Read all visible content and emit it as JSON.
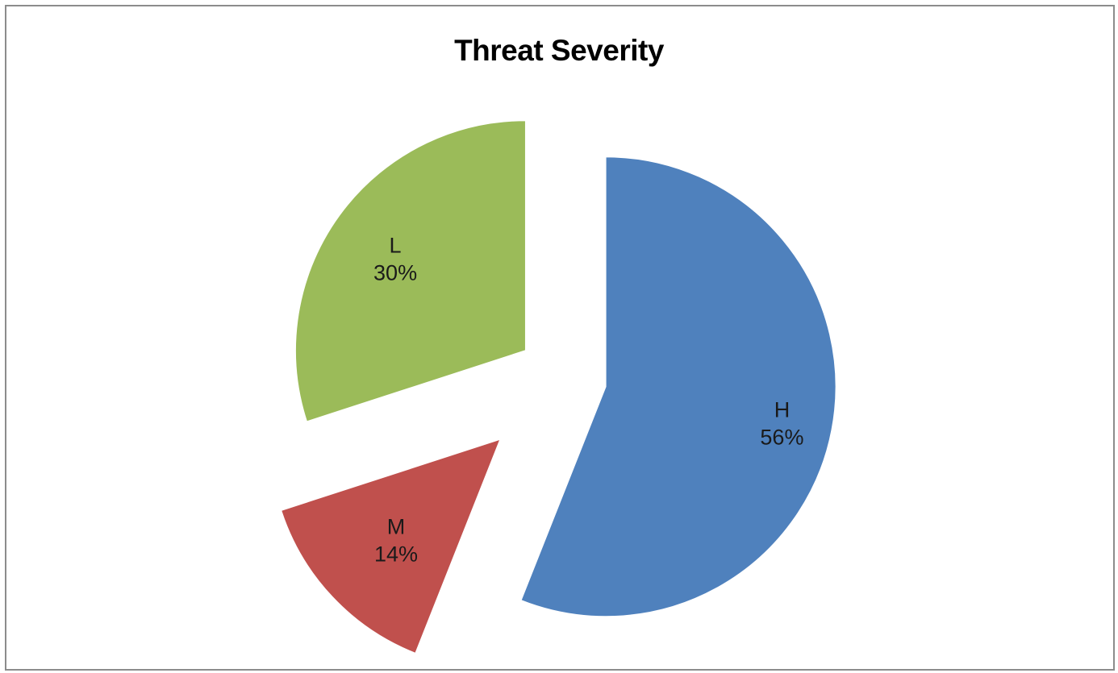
{
  "chart_data": {
    "type": "pie",
    "title": "Threat Severity",
    "exploded": true,
    "slices": [
      {
        "label": "H",
        "value": 56,
        "value_label": "56%",
        "color": "#4F81BD"
      },
      {
        "label": "M",
        "value": 14,
        "value_label": "14%",
        "color": "#C0504D"
      },
      {
        "label": "L",
        "value": 30,
        "value_label": "30%",
        "color": "#9BBB59"
      }
    ],
    "legend": "none"
  }
}
